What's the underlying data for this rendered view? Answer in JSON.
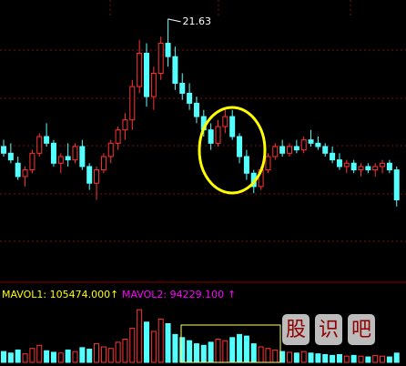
{
  "chart_data": {
    "type": "candlestick",
    "ylim": [
      14,
      22.2
    ],
    "open": [
      17.8,
      17.6,
      17.3,
      16.9,
      17.1,
      17.6,
      18.1,
      17.9,
      17.3,
      17.5,
      17.4,
      17.8,
      17.2,
      16.7,
      17.1,
      17.5,
      17.9,
      18.3,
      18.6,
      19.6,
      20.6,
      19.3,
      20.0,
      20.9,
      20.5,
      19.7,
      19.4,
      19.1,
      18.7,
      18.3,
      17.9,
      18.4,
      18.7,
      18.1,
      17.5,
      17.0,
      16.6,
      17.1,
      17.5,
      17.8,
      17.6,
      17.8,
      17.7,
      18.0,
      17.9,
      17.8,
      17.6,
      17.4,
      17.2,
      17.3,
      17.1,
      17.2,
      17.1,
      17.2,
      17.3,
      17.1
    ],
    "high": [
      18.0,
      17.9,
      17.5,
      17.2,
      17.7,
      18.2,
      18.5,
      18.0,
      17.6,
      17.9,
      17.9,
      18.0,
      17.3,
      17.2,
      17.6,
      18.0,
      18.4,
      18.8,
      19.8,
      21.0,
      20.9,
      20.2,
      21.1,
      21.63,
      20.8,
      20.0,
      19.7,
      19.3,
      18.9,
      18.5,
      18.6,
      18.9,
      18.9,
      18.2,
      17.7,
      17.1,
      17.2,
      17.6,
      17.9,
      18.0,
      17.9,
      18.0,
      18.1,
      18.3,
      18.1,
      17.9,
      17.8,
      17.6,
      17.4,
      17.4,
      17.3,
      17.3,
      17.3,
      17.4,
      17.4,
      17.2
    ],
    "low": [
      17.5,
      17.3,
      16.8,
      16.6,
      17.0,
      17.5,
      17.8,
      17.2,
      17.0,
      17.2,
      17.3,
      17.1,
      16.5,
      16.2,
      17.0,
      17.3,
      17.7,
      18.0,
      18.3,
      19.4,
      19.0,
      18.9,
      19.8,
      20.2,
      19.5,
      19.2,
      18.9,
      18.5,
      18.1,
      17.7,
      17.8,
      18.2,
      18.0,
      17.3,
      16.8,
      16.4,
      16.5,
      17.0,
      17.4,
      17.5,
      17.5,
      17.6,
      17.6,
      17.8,
      17.7,
      17.5,
      17.3,
      17.1,
      17.0,
      17.0,
      16.9,
      17.0,
      16.9,
      17.0,
      17.0,
      16.0
    ],
    "close": [
      17.6,
      17.4,
      16.9,
      17.1,
      17.6,
      18.1,
      17.9,
      17.3,
      17.5,
      17.4,
      17.8,
      17.2,
      16.7,
      17.1,
      17.5,
      17.9,
      18.3,
      18.6,
      19.6,
      20.6,
      19.3,
      20.0,
      20.9,
      20.5,
      19.7,
      19.4,
      19.1,
      18.7,
      18.3,
      17.9,
      18.4,
      18.7,
      18.1,
      17.5,
      17.0,
      16.6,
      17.1,
      17.5,
      17.8,
      17.6,
      17.8,
      17.7,
      18.0,
      17.9,
      17.8,
      17.6,
      17.4,
      17.2,
      17.3,
      17.1,
      17.2,
      17.1,
      17.2,
      17.3,
      17.1,
      16.2
    ],
    "volume": [
      70000,
      60000,
      80000,
      55000,
      90000,
      110000,
      75000,
      65000,
      60000,
      80000,
      70000,
      95000,
      85000,
      120000,
      100000,
      90000,
      130000,
      150000,
      220000,
      340000,
      260000,
      200000,
      280000,
      250000,
      180000,
      160000,
      140000,
      120000,
      110000,
      130000,
      150000,
      140000,
      160000,
      180000,
      170000,
      120000,
      100000,
      90000,
      80000,
      70000,
      65000,
      60000,
      70000,
      60000,
      55000,
      50000,
      45000,
      50000,
      40000,
      45000,
      40000,
      35000,
      45000,
      40000,
      35000,
      60000
    ],
    "volume_ylim": [
      0,
      400000
    ],
    "up_color": "#ff3232",
    "down_color": "#54ffff",
    "mavol1_label": "MAVOL1: 105474.000",
    "mavol1_arrow": "↑",
    "mavol1_color": "#ffff00",
    "mavol2_label": "MAVOL2: 94229.100",
    "mavol2_arrow": "↑",
    "mavol2_color": "#ff00ff",
    "watermark": [
      "股",
      "识",
      "吧"
    ]
  }
}
